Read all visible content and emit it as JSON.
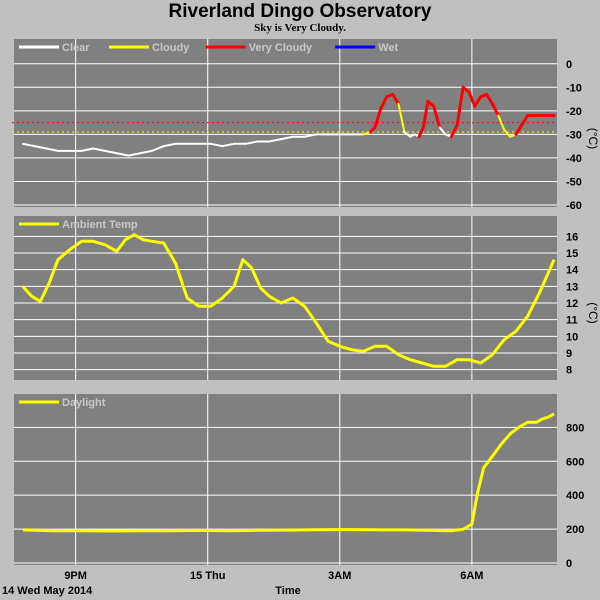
{
  "header": {
    "title": "Riverland Dingo Observatory",
    "subtitle": "Sky is Very Cloudy."
  },
  "footer": {
    "date_label": "14 Wed May 2014",
    "time_label": "Time"
  },
  "colors": {
    "panel_bg": "#808080",
    "page_bg": "#c0c0c0",
    "grid": "#ffffff",
    "clear": "#ffffff",
    "cloudy": "#ffff00",
    "very_cloudy": "#ff0000",
    "wet": "#0000ff"
  },
  "chart_data": [
    {
      "type": "line",
      "name": "sky",
      "legend": [
        {
          "label": "Clear",
          "color": "#ffffff"
        },
        {
          "label": "Cloudy",
          "color": "#ffff00"
        },
        {
          "label": "Very Cloudy",
          "color": "#ff0000"
        },
        {
          "label": "Wet",
          "color": "#0000ff"
        }
      ],
      "ylabel": "(°C)",
      "ylim": [
        -60,
        5
      ],
      "yticks": [
        "0",
        "-10",
        "-20",
        "-30",
        "-40",
        "-50",
        "-60"
      ],
      "ytick_values": [
        0,
        -10,
        -20,
        -30,
        -40,
        -50,
        -60
      ],
      "thresholds": [
        {
          "value": -25,
          "color": "#ff0000"
        },
        {
          "value": -29,
          "color": "#ffff00"
        }
      ],
      "x": [
        0.0,
        0.4,
        0.8,
        1.2,
        1.6,
        2.0,
        2.4,
        2.8,
        3.2,
        3.6,
        4.0,
        4.4,
        4.8,
        5.2,
        5.6,
        6.0,
        6.4,
        6.8,
        7.2,
        7.6,
        8.0,
        8.4,
        8.8,
        9.2,
        9.6,
        10.0,
        10.4,
        10.8,
        11.2,
        11.6,
        11.85,
        12.0,
        12.2,
        12.4,
        12.6,
        12.8,
        13.0,
        13.2,
        13.35,
        13.5,
        13.65,
        13.8,
        14.0,
        14.2,
        14.4,
        14.6,
        14.8,
        15.0,
        15.2,
        15.4,
        15.6,
        15.8,
        16.0,
        16.2,
        16.4,
        16.6,
        16.8,
        17.0,
        17.2,
        17.4,
        17.6,
        17.8,
        18.0,
        18.1
      ],
      "y": [
        -34,
        -35,
        -36,
        -37,
        -37,
        -37,
        -36,
        -37,
        -38,
        -39,
        -38,
        -37,
        -35,
        -34,
        -34,
        -34,
        -34,
        -35,
        -34,
        -34,
        -33,
        -33,
        -32,
        -31,
        -31,
        -30,
        -30,
        -30,
        -30,
        -30,
        -29,
        -27,
        -19,
        -14,
        -13,
        -17,
        -29,
        -31,
        -30,
        -31,
        -27,
        -16,
        -18,
        -27,
        -30,
        -31,
        -26,
        -10,
        -12,
        -18,
        -14,
        -13,
        -17,
        -22,
        -28,
        -31,
        -30,
        -26,
        -22,
        -22,
        -22,
        -22,
        -22,
        -22
      ],
      "state": [
        "clear",
        "clear",
        "clear",
        "clear",
        "clear",
        "clear",
        "clear",
        "clear",
        "clear",
        "clear",
        "clear",
        "clear",
        "clear",
        "clear",
        "clear",
        "clear",
        "clear",
        "clear",
        "clear",
        "clear",
        "clear",
        "clear",
        "clear",
        "clear",
        "clear",
        "clear",
        "clear",
        "clear",
        "clear",
        "clear",
        "cloudy",
        "very_cloudy",
        "very_cloudy",
        "very_cloudy",
        "very_cloudy",
        "very_cloudy",
        "cloudy",
        "clear",
        "clear",
        "clear",
        "very_cloudy",
        "very_cloudy",
        "very_cloudy",
        "very_cloudy",
        "clear",
        "clear",
        "very_cloudy",
        "very_cloudy",
        "very_cloudy",
        "very_cloudy",
        "very_cloudy",
        "very_cloudy",
        "very_cloudy",
        "very_cloudy",
        "cloudy",
        "cloudy",
        "cloudy",
        "very_cloudy",
        "very_cloudy",
        "very_cloudy",
        "very_cloudy",
        "very_cloudy",
        "very_cloudy",
        "very_cloudy"
      ]
    },
    {
      "type": "line",
      "name": "ambient",
      "legend": [
        {
          "label": "Ambient Temp",
          "color": "#ffff00"
        }
      ],
      "ylabel": "(°C)",
      "ylim": [
        7.5,
        16.5
      ],
      "yticks": [
        "16",
        "15",
        "14",
        "13",
        "12",
        "11",
        "10",
        "9",
        "8"
      ],
      "ytick_values": [
        16,
        15,
        14,
        13,
        12,
        11,
        10,
        9,
        8
      ],
      "x": [
        0.0,
        0.3,
        0.6,
        0.9,
        1.2,
        1.6,
        2.0,
        2.4,
        2.8,
        3.2,
        3.5,
        3.8,
        4.1,
        4.4,
        4.8,
        5.2,
        5.6,
        6.0,
        6.4,
        6.8,
        7.2,
        7.5,
        7.8,
        8.1,
        8.4,
        8.8,
        9.2,
        9.6,
        10.0,
        10.4,
        10.8,
        11.2,
        11.6,
        12.0,
        12.4,
        12.8,
        13.2,
        13.6,
        14.0,
        14.4,
        14.8,
        15.2,
        15.6,
        16.0,
        16.4,
        16.8,
        17.2,
        17.6,
        18.1
      ],
      "y": [
        13.0,
        12.4,
        12.1,
        13.2,
        14.6,
        15.2,
        15.7,
        15.7,
        15.5,
        15.1,
        15.8,
        16.1,
        15.8,
        15.7,
        15.6,
        14.4,
        12.3,
        11.8,
        11.8,
        12.3,
        13.0,
        14.6,
        14.1,
        12.9,
        12.4,
        12.0,
        12.3,
        11.8,
        10.8,
        9.7,
        9.4,
        9.2,
        9.1,
        9.4,
        9.4,
        8.9,
        8.6,
        8.4,
        8.2,
        8.2,
        8.6,
        8.6,
        8.4,
        8.9,
        9.8,
        10.3,
        11.2,
        12.6,
        14.6
      ]
    },
    {
      "type": "line",
      "name": "daylight",
      "legend": [
        {
          "label": "Daylight",
          "color": "#ffff00"
        }
      ],
      "ylabel": "",
      "ylim": [
        0,
        920
      ],
      "yticks": [
        "800",
        "600",
        "400",
        "200",
        "0"
      ],
      "ytick_values": [
        800,
        600,
        400,
        200,
        0
      ],
      "x": [
        0.0,
        1.0,
        2.0,
        3.0,
        4.0,
        5.0,
        6.0,
        7.0,
        8.0,
        9.0,
        10.0,
        11.0,
        12.0,
        13.0,
        14.0,
        14.6,
        15.0,
        15.3,
        15.5,
        15.7,
        16.0,
        16.3,
        16.6,
        16.9,
        17.2,
        17.5,
        17.7,
        17.9,
        18.1
      ],
      "y": [
        195,
        190,
        190,
        189,
        190,
        190,
        192,
        190,
        193,
        194,
        196,
        197,
        196,
        195,
        192,
        190,
        198,
        230,
        420,
        560,
        630,
        700,
        760,
        800,
        830,
        830,
        850,
        860,
        880
      ]
    }
  ],
  "x_axis": {
    "xlim": [
      -0.3,
      18.2
    ],
    "ticks": [
      {
        "label": "9PM",
        "value": 1.8
      },
      {
        "label": "15 Thu",
        "value": 6.3
      },
      {
        "label": "3AM",
        "value": 10.8
      },
      {
        "label": "6AM",
        "value": 15.3
      }
    ]
  }
}
